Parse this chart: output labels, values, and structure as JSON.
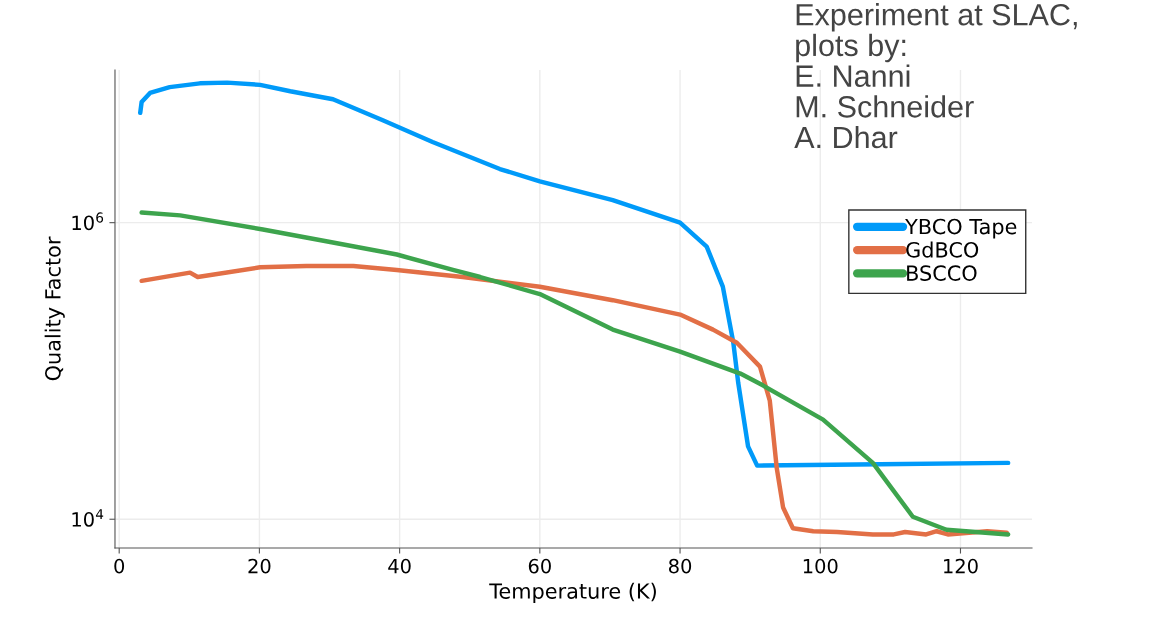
{
  "chart_data": {
    "type": "line",
    "xlabel": "Temperature (K)",
    "ylabel": "Quality Factor",
    "log": "y",
    "grid": true,
    "legend": "right",
    "xlim": [
      -0.6,
      130.2
    ],
    "xticks": [
      0,
      20,
      40,
      60,
      80,
      100,
      120
    ],
    "ylim": [
      6400,
      10700000
    ],
    "yticks": [
      {
        "value": 10000,
        "label": "10$^{4}$"
      },
      {
        "value": 1000000,
        "label": "10$^{6}$"
      }
    ],
    "annotations": [
      "Experiment at SLAC,\nplots by:\nE. Nanni\nM. Schneider\nA. Dhar"
    ],
    "series": [
      {
        "name": "YBCO Tape",
        "color": "#009af9",
        "x": [
          3.0,
          3.2,
          4.4,
          7.2,
          11.5,
          15.4,
          20.1,
          24.4,
          30.5,
          37.6,
          44.7,
          54.3,
          60.0,
          70.4,
          80.0,
          83.8,
          86.1,
          87.6,
          88.3,
          89.7,
          91.0,
          108.5,
          126.8
        ],
        "values": [
          5500000,
          6500000,
          7500000,
          8200000,
          8700000,
          8800000,
          8500000,
          7700000,
          6800000,
          4900000,
          3500000,
          2300000,
          1900000,
          1420000,
          1000000,
          690000,
          370000,
          155000,
          83000,
          31000,
          23000,
          23500,
          24000
        ]
      },
      {
        "name": "GdBCO",
        "color": "#e26f46",
        "x": [
          3.2,
          10.1,
          11.2,
          20.1,
          26.7,
          33.4,
          39.6,
          49.0,
          60,
          70.4,
          80,
          84.7,
          88.1,
          91.4,
          92.8,
          93.8,
          94.7,
          96.1,
          99.0,
          102.4,
          107.5,
          110.5,
          112.1,
          115.1,
          116.6,
          118.2,
          123.8,
          126.6
        ],
        "values": [
          405000,
          460000,
          430000,
          500000,
          510000,
          510000,
          480000,
          430000,
          370000,
          300000,
          240000,
          190000,
          155000,
          107000,
          63000,
          22000,
          12000,
          8700,
          8300,
          8200,
          7900,
          7900,
          8200,
          7900,
          8300,
          7900,
          8300,
          8100
        ]
      },
      {
        "name": "BSCCO",
        "color": "#3da44d",
        "x": [
          3.2,
          8.7,
          20.5,
          30.1,
          39.6,
          47.6,
          51.5,
          60,
          70.4,
          80,
          88.6,
          91.8,
          100.4,
          107.5,
          113.2,
          118.0,
          126.8
        ],
        "values": [
          1170000,
          1120000,
          900000,
          740000,
          610000,
          480000,
          430000,
          330000,
          190000,
          135000,
          96000,
          80000,
          47000,
          24000,
          10400,
          8500,
          7900
        ]
      }
    ]
  }
}
